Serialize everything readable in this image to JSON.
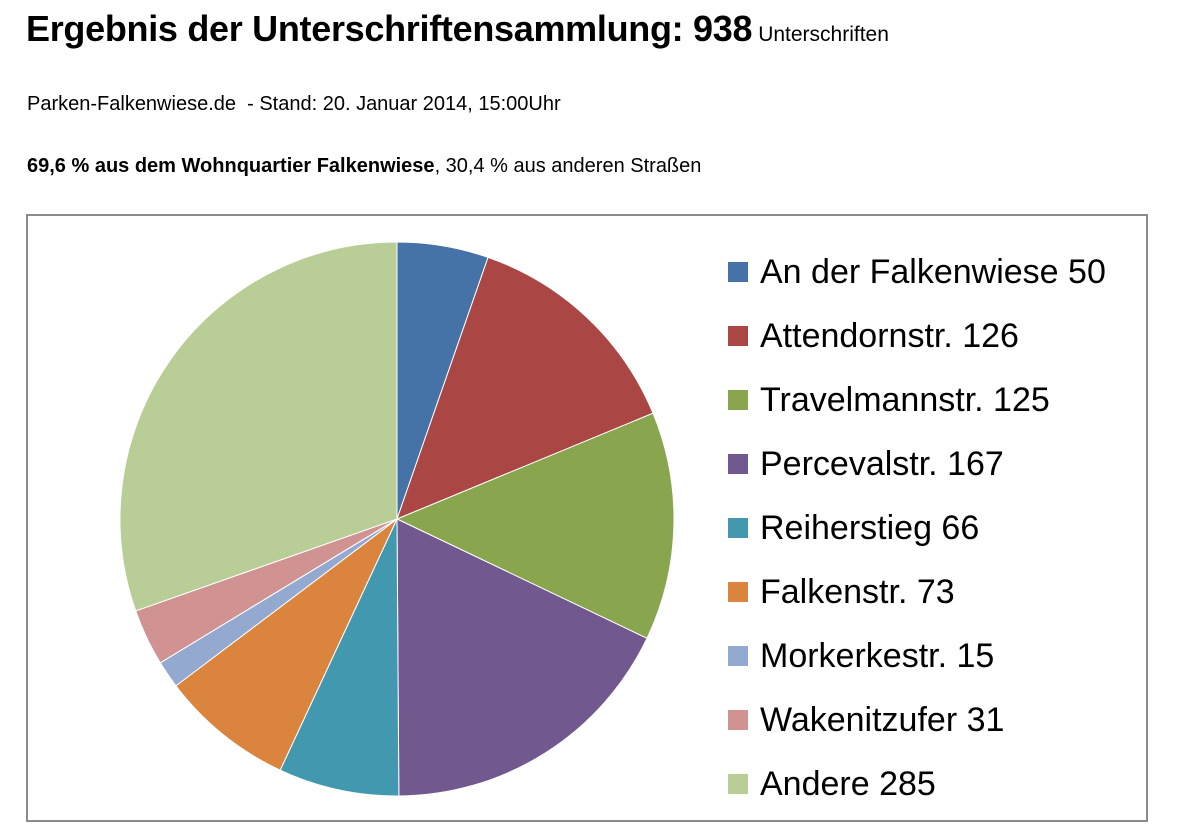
{
  "header": {
    "title_main": "Ergebnis der Unterschriftensammlung: 938",
    "title_unit": "Unterschriften",
    "subtitle": "Parken-Falkenwiese.de  - Stand: 20. Januar 2014, 15:00Uhr",
    "summary_bold": "69,6 % aus dem Wohnquartier Falkenwiese",
    "summary_rest": ", 30,4 % aus anderen Straßen"
  },
  "chart_data": {
    "type": "pie",
    "start_angle_deg": 0,
    "direction": "clockwise",
    "legend_position": "right",
    "slices": [
      {
        "label": "An der Falkenwiese 50",
        "value": 50,
        "color": "#4572A7"
      },
      {
        "label": "Attendornstr. 126",
        "value": 126,
        "color": "#AA4643"
      },
      {
        "label": "Travelmannstr. 125",
        "value": 125,
        "color": "#89A54E"
      },
      {
        "label": "Percevalstr. 167",
        "value": 167,
        "color": "#71588F"
      },
      {
        "label": "Reiherstieg 66",
        "value": 66,
        "color": "#4198AF"
      },
      {
        "label": "Falkenstr. 73",
        "value": 73,
        "color": "#DB843D"
      },
      {
        "label": "Morkerkestr. 15",
        "value": 15,
        "color": "#93A9CF"
      },
      {
        "label": "Wakenitzufer 31",
        "value": 31,
        "color": "#D19392"
      },
      {
        "label": "Andere 285",
        "value": 285,
        "color": "#B9CD96"
      }
    ]
  }
}
